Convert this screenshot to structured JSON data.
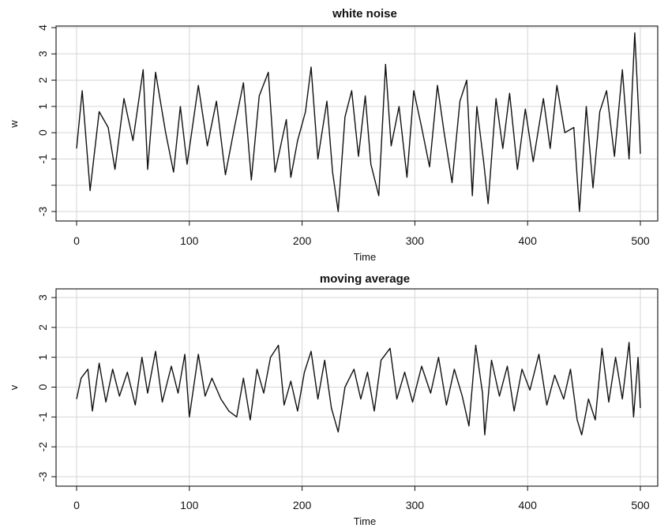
{
  "chart_data": [
    {
      "type": "line",
      "title": "white noise",
      "xlabel": "Time",
      "ylabel": "w",
      "xlim": [
        0,
        500
      ],
      "ylim": [
        -3,
        4
      ],
      "x_ticks": [
        0,
        100,
        200,
        300,
        400,
        500
      ],
      "y_ticks": [
        -3,
        -2,
        -1,
        0,
        1,
        2,
        3,
        4
      ],
      "y_tick_labels": [
        "-3",
        "",
        "-1",
        "0",
        "1",
        "2",
        "3",
        "4"
      ],
      "grid": true,
      "series": [
        {
          "x": [
            0,
            500
          ],
          "values": [
            -0.6,
            -0.8
          ],
          "sample_points": [
            [
              0,
              -0.6
            ],
            [
              5,
              1.6
            ],
            [
              12,
              -2.2
            ],
            [
              20,
              0.8
            ],
            [
              28,
              0.2
            ],
            [
              34,
              -1.4
            ],
            [
              42,
              1.3
            ],
            [
              50,
              -0.3
            ],
            [
              59,
              2.4
            ],
            [
              63,
              -1.4
            ],
            [
              70,
              2.3
            ],
            [
              79,
              0.0
            ],
            [
              86,
              -1.5
            ],
            [
              92,
              1.0
            ],
            [
              98,
              -1.2
            ],
            [
              102,
              0.0
            ],
            [
              108,
              1.8
            ],
            [
              116,
              -0.5
            ],
            [
              124,
              1.2
            ],
            [
              132,
              -1.6
            ],
            [
              140,
              0.2
            ],
            [
              148,
              1.9
            ],
            [
              155,
              -1.8
            ],
            [
              162,
              1.4
            ],
            [
              170,
              2.3
            ],
            [
              176,
              -1.5
            ],
            [
              186,
              0.5
            ],
            [
              190,
              -1.7
            ],
            [
              196,
              -0.3
            ],
            [
              203,
              0.8
            ],
            [
              208,
              2.5
            ],
            [
              214,
              -1.0
            ],
            [
              222,
              1.2
            ],
            [
              227,
              -1.5
            ],
            [
              232,
              -3.0
            ],
            [
              238,
              0.6
            ],
            [
              244,
              1.6
            ],
            [
              250,
              -0.9
            ],
            [
              256,
              1.4
            ],
            [
              261,
              -1.2
            ],
            [
              268,
              -2.4
            ],
            [
              274,
              2.6
            ],
            [
              279,
              -0.5
            ],
            [
              286,
              1.0
            ],
            [
              293,
              -1.7
            ],
            [
              299,
              1.6
            ],
            [
              306,
              0.2
            ],
            [
              313,
              -1.3
            ],
            [
              320,
              1.8
            ],
            [
              326,
              0.0
            ],
            [
              333,
              -1.9
            ],
            [
              340,
              1.2
            ],
            [
              346,
              2.0
            ],
            [
              351,
              -2.4
            ],
            [
              355,
              1.0
            ],
            [
              361,
              -1.1
            ],
            [
              365,
              -2.7
            ],
            [
              372,
              1.3
            ],
            [
              378,
              -0.6
            ],
            [
              384,
              1.5
            ],
            [
              391,
              -1.4
            ],
            [
              398,
              0.9
            ],
            [
              405,
              -1.1
            ],
            [
              414,
              1.3
            ],
            [
              420,
              -0.6
            ],
            [
              426,
              1.8
            ],
            [
              433,
              0.0
            ],
            [
              441,
              0.2
            ],
            [
              446,
              -3.0
            ],
            [
              452,
              1.0
            ],
            [
              458,
              -2.1
            ],
            [
              464,
              0.8
            ],
            [
              470,
              1.6
            ],
            [
              477,
              -0.9
            ],
            [
              484,
              2.4
            ],
            [
              490,
              -1.0
            ],
            [
              495,
              3.8
            ],
            [
              499,
              0.3
            ],
            [
              500,
              -0.8
            ]
          ]
        }
      ]
    },
    {
      "type": "line",
      "title": "moving average",
      "xlabel": "Time",
      "ylabel": "v",
      "xlim": [
        0,
        500
      ],
      "ylim": [
        -3,
        3
      ],
      "x_ticks": [
        0,
        100,
        200,
        300,
        400,
        500
      ],
      "y_ticks": [
        -3,
        -2,
        -1,
        0,
        1,
        2,
        3
      ],
      "y_tick_labels": [
        "-3",
        "-2",
        "-1",
        "0",
        "1",
        "2",
        "3"
      ],
      "grid": true,
      "series": [
        {
          "x": [
            0,
            500
          ],
          "values": [
            -0.4,
            -0.7
          ],
          "sample_points": [
            [
              0,
              -0.4
            ],
            [
              4,
              0.3
            ],
            [
              10,
              0.6
            ],
            [
              14,
              -0.8
            ],
            [
              20,
              0.8
            ],
            [
              26,
              -0.5
            ],
            [
              32,
              0.6
            ],
            [
              38,
              -0.3
            ],
            [
              45,
              0.5
            ],
            [
              52,
              -0.6
            ],
            [
              58,
              1.0
            ],
            [
              63,
              -0.2
            ],
            [
              70,
              1.2
            ],
            [
              76,
              -0.5
            ],
            [
              84,
              0.7
            ],
            [
              90,
              -0.2
            ],
            [
              96,
              1.1
            ],
            [
              100,
              -1.0
            ],
            [
              108,
              1.1
            ],
            [
              114,
              -0.3
            ],
            [
              120,
              0.3
            ],
            [
              128,
              -0.4
            ],
            [
              135,
              -0.8
            ],
            [
              142,
              -1.0
            ],
            [
              148,
              0.3
            ],
            [
              154,
              -1.1
            ],
            [
              160,
              0.6
            ],
            [
              166,
              -0.2
            ],
            [
              172,
              1.0
            ],
            [
              179,
              1.4
            ],
            [
              184,
              -0.6
            ],
            [
              190,
              0.2
            ],
            [
              196,
              -0.8
            ],
            [
              202,
              0.5
            ],
            [
              208,
              1.2
            ],
            [
              214,
              -0.4
            ],
            [
              220,
              0.9
            ],
            [
              226,
              -0.7
            ],
            [
              232,
              -1.5
            ],
            [
              238,
              0.0
            ],
            [
              246,
              0.6
            ],
            [
              252,
              -0.4
            ],
            [
              258,
              0.5
            ],
            [
              264,
              -0.8
            ],
            [
              270,
              0.9
            ],
            [
              278,
              1.3
            ],
            [
              284,
              -0.4
            ],
            [
              291,
              0.5
            ],
            [
              298,
              -0.5
            ],
            [
              306,
              0.7
            ],
            [
              314,
              -0.2
            ],
            [
              321,
              1.0
            ],
            [
              328,
              -0.6
            ],
            [
              335,
              0.6
            ],
            [
              342,
              -0.3
            ],
            [
              348,
              -1.3
            ],
            [
              354,
              1.4
            ],
            [
              360,
              -0.2
            ],
            [
              362,
              -1.6
            ],
            [
              368,
              0.9
            ],
            [
              375,
              -0.3
            ],
            [
              382,
              0.7
            ],
            [
              388,
              -0.8
            ],
            [
              395,
              0.6
            ],
            [
              402,
              -0.1
            ],
            [
              410,
              1.1
            ],
            [
              417,
              -0.6
            ],
            [
              424,
              0.4
            ],
            [
              432,
              -0.4
            ],
            [
              438,
              0.6
            ],
            [
              444,
              -1.1
            ],
            [
              448,
              -1.6
            ],
            [
              454,
              -0.4
            ],
            [
              460,
              -1.1
            ],
            [
              466,
              1.3
            ],
            [
              472,
              -0.5
            ],
            [
              478,
              1.0
            ],
            [
              484,
              -0.4
            ],
            [
              490,
              1.5
            ],
            [
              494,
              -1.0
            ],
            [
              498,
              1.0
            ],
            [
              500,
              -0.7
            ]
          ]
        }
      ]
    }
  ]
}
